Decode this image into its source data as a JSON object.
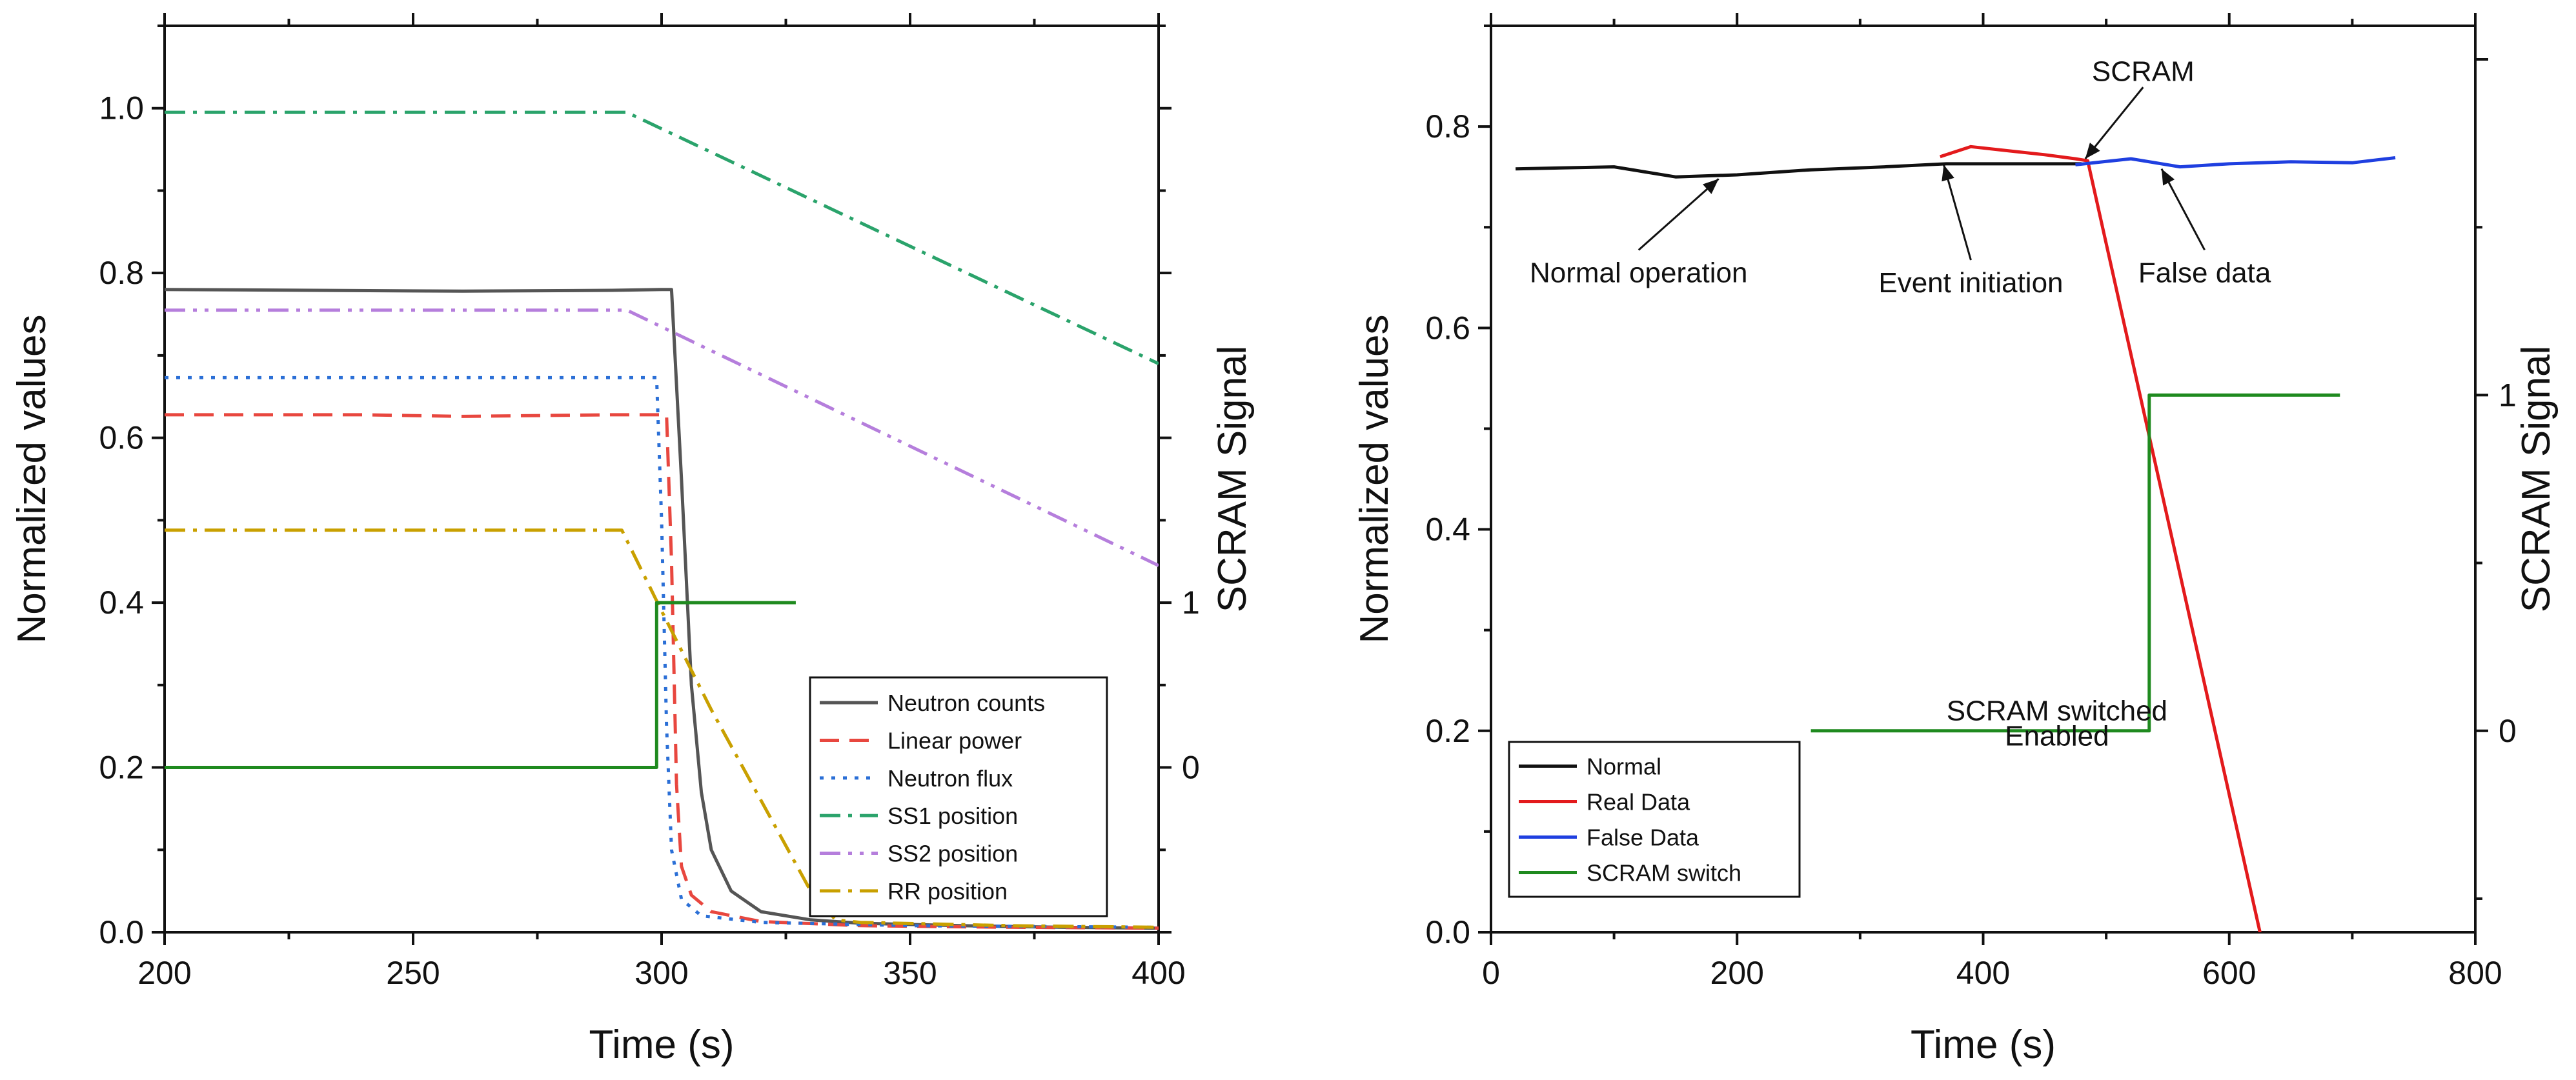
{
  "chart_data": [
    {
      "type": "line",
      "xlabel": "Time (s)",
      "ylabel": "Normalized values",
      "y2label": "SCRAM Signal",
      "xlim": [
        200,
        400
      ],
      "ylim": [
        0,
        1.1
      ],
      "y2lim": [
        -1,
        4.5
      ],
      "xticks": [
        200,
        250,
        300,
        350,
        400
      ],
      "xtick_labels": [
        "200",
        "250",
        "300",
        "350",
        "400"
      ],
      "yticks": [
        0,
        0.2,
        0.4,
        0.6,
        0.8,
        1.0
      ],
      "ytick_labels": [
        "0.0",
        "0.2",
        "0.4",
        "0.6",
        "0.8",
        "1.0"
      ],
      "y2ticks": [
        0,
        1
      ],
      "y2tick_labels": [
        "0",
        "1"
      ],
      "legend_position": "bottom-right",
      "series": [
        {
          "name": "Neutron counts",
          "color": "#555555",
          "dash": "solid",
          "axis": "y",
          "x": [
            200,
            230,
            260,
            290,
            300,
            302,
            304,
            306,
            308,
            310,
            314,
            320,
            330,
            340,
            360,
            380,
            400
          ],
          "y": [
            0.78,
            0.779,
            0.778,
            0.779,
            0.78,
            0.78,
            0.55,
            0.3,
            0.17,
            0.1,
            0.05,
            0.025,
            0.015,
            0.011,
            0.008,
            0.006,
            0.005
          ]
        },
        {
          "name": "Linear power",
          "color": "#e8473f",
          "dash": "dashed",
          "axis": "y",
          "x": [
            200,
            240,
            260,
            290,
            301,
            302,
            303,
            304,
            306,
            310,
            320,
            340,
            370,
            400
          ],
          "y": [
            0.628,
            0.628,
            0.626,
            0.628,
            0.628,
            0.45,
            0.18,
            0.08,
            0.045,
            0.025,
            0.013,
            0.008,
            0.006,
            0.005
          ]
        },
        {
          "name": "Neutron flux",
          "color": "#2b6fd6",
          "dash": "dotted",
          "axis": "y",
          "x": [
            200,
            250,
            299,
            300,
            301,
            302,
            304,
            308,
            320,
            350,
            400
          ],
          "y": [
            0.673,
            0.673,
            0.673,
            0.5,
            0.25,
            0.1,
            0.04,
            0.02,
            0.012,
            0.008,
            0.006
          ]
        },
        {
          "name": "SS1 position",
          "color": "#2aa36b",
          "dash": "dashdot",
          "axis": "y",
          "x": [
            200,
            293,
            400
          ],
          "y": [
            0.995,
            0.995,
            0.69
          ]
        },
        {
          "name": "SS2 position",
          "color": "#b57edc",
          "dash": "dashdotdot",
          "axis": "y",
          "x": [
            200,
            293,
            400
          ],
          "y": [
            0.755,
            0.755,
            0.445
          ]
        },
        {
          "name": "RR position",
          "color": "#c9a000",
          "dash": "dashdot",
          "axis": "y",
          "x": [
            200,
            292,
            300,
            310,
            320,
            330,
            335,
            340,
            370,
            400
          ],
          "y": [
            0.488,
            0.488,
            0.39,
            0.27,
            0.16,
            0.05,
            0.015,
            0.012,
            0.008,
            0.006
          ]
        },
        {
          "name": "",
          "color": "#1f8a1f",
          "dash": "solid",
          "axis": "y2",
          "width": 5,
          "x": [
            200,
            299,
            299,
            327
          ],
          "y": [
            0,
            0,
            1,
            1
          ]
        }
      ],
      "annotations": []
    },
    {
      "type": "line",
      "xlabel": "Time (s)",
      "ylabel": "Normalized values",
      "y2label": "SCRAM Signal",
      "xlim": [
        0,
        800
      ],
      "ylim": [
        0,
        0.9
      ],
      "y2lim": [
        -0.6,
        2.1
      ],
      "xticks": [
        0,
        200,
        400,
        600,
        800
      ],
      "xtick_labels": [
        "0",
        "200",
        "400",
        "600",
        "800"
      ],
      "yticks": [
        0,
        0.2,
        0.4,
        0.6,
        0.8
      ],
      "ytick_labels": [
        "0.0",
        "0.2",
        "0.4",
        "0.6",
        "0.8"
      ],
      "y2ticks": [
        0,
        1
      ],
      "y2tick_labels": [
        "0",
        "1"
      ],
      "legend_position": "bottom-left",
      "series": [
        {
          "name": "Normal",
          "color": "#111111",
          "dash": "solid",
          "axis": "y",
          "x": [
            20,
            100,
            150,
            200,
            260,
            320,
            370,
            480
          ],
          "y": [
            0.758,
            0.76,
            0.75,
            0.752,
            0.757,
            0.76,
            0.763,
            0.763
          ]
        },
        {
          "name": "Real Data",
          "color": "#e31a1c",
          "dash": "solid",
          "axis": "y",
          "x": [
            365,
            390,
            420,
            450,
            475,
            485,
            625
          ],
          "y": [
            0.77,
            0.78,
            0.776,
            0.772,
            0.768,
            0.766,
            0.0
          ]
        },
        {
          "name": "False Data",
          "color": "#1f3fe0",
          "dash": "solid",
          "axis": "y",
          "x": [
            475,
            520,
            560,
            600,
            650,
            700,
            735
          ],
          "y": [
            0.762,
            0.768,
            0.76,
            0.763,
            0.765,
            0.764,
            0.769
          ]
        },
        {
          "name": "SCRAM switch",
          "color": "#1f8a1f",
          "dash": "solid",
          "axis": "y2",
          "width": 5,
          "x": [
            260,
            535,
            535,
            690
          ],
          "y": [
            0,
            0,
            1,
            1
          ]
        }
      ],
      "annotations": [
        {
          "text": "Normal operation",
          "x": 120,
          "y": 0.655,
          "ax": 185,
          "ay": 0.748
        },
        {
          "text": "Event initiation",
          "x": 390,
          "y": 0.645,
          "ax": 368,
          "ay": 0.762
        },
        {
          "text": "SCRAM",
          "x": 530,
          "y": 0.855,
          "ax": 483,
          "ay": 0.768
        },
        {
          "text": "False data",
          "x": 580,
          "y": 0.655,
          "ax": 545,
          "ay": 0.758
        },
        {
          "text": "SCRAM switched",
          "x": 460,
          "y": 0.22
        },
        {
          "text": "Enabled",
          "x": 460,
          "y": 0.195
        }
      ]
    }
  ]
}
